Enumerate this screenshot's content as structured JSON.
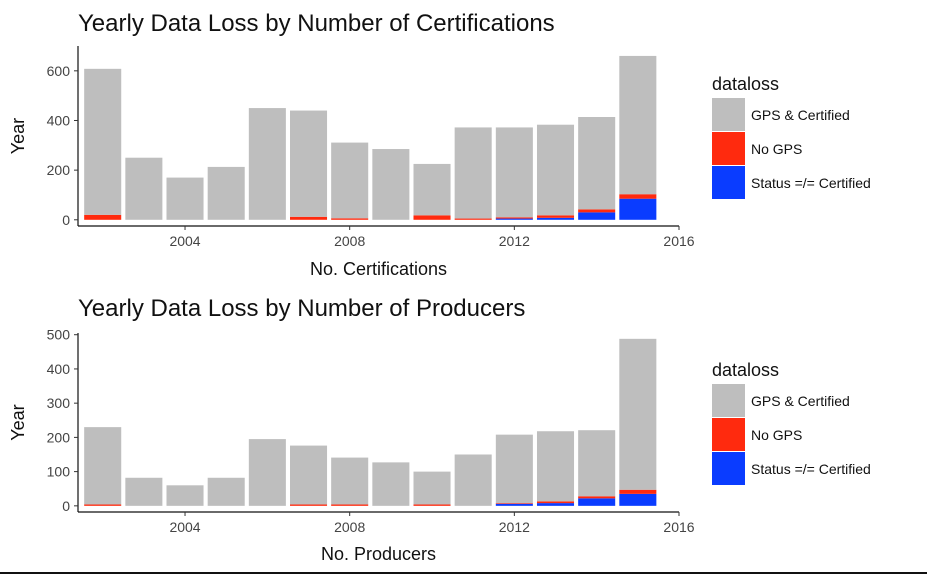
{
  "chart_data": [
    {
      "type": "bar",
      "stacked": true,
      "title": "Yearly Data Loss by Number of Certifications",
      "xlabel": "No. Certifications",
      "ylabel": "Year",
      "x": [
        2002,
        2003,
        2004,
        2005,
        2006,
        2007,
        2008,
        2009,
        2010,
        2011,
        2012,
        2013,
        2014,
        2015
      ],
      "xlim": [
        2001.4,
        2016.0
      ],
      "ylim": [
        -25,
        700
      ],
      "xticks": [
        2004,
        2008,
        2012,
        2016
      ],
      "xtick_labels": [
        "2004",
        "2008",
        "2012",
        "2016"
      ],
      "yticks": [
        0,
        200,
        400,
        600
      ],
      "ytick_labels": [
        "0",
        "200",
        "400",
        "600"
      ],
      "grid": false,
      "legend": {
        "title": "dataloss",
        "position": "right",
        "entries": [
          "GPS & Certified",
          "No GPS",
          "Status =/= Certified"
        ]
      },
      "series": [
        {
          "name": "Status =/= Certified",
          "color": "#0a3cff",
          "values": [
            0,
            0,
            0,
            0,
            0,
            0,
            0,
            0,
            0,
            0,
            5,
            8,
            30,
            85
          ]
        },
        {
          "name": "No GPS",
          "color": "#ff2a0e",
          "values": [
            20,
            0,
            0,
            0,
            0,
            12,
            6,
            0,
            18,
            5,
            5,
            10,
            12,
            18
          ]
        },
        {
          "name": "GPS & Certified",
          "color": "#bebebe",
          "values": [
            588,
            250,
            170,
            213,
            450,
            428,
            305,
            285,
            207,
            367,
            362,
            365,
            372,
            557
          ]
        }
      ]
    },
    {
      "type": "bar",
      "stacked": true,
      "title": "Yearly Data Loss by Number of Producers",
      "xlabel": "No. Producers",
      "ylabel": "Year",
      "x": [
        2002,
        2003,
        2004,
        2005,
        2006,
        2007,
        2008,
        2009,
        2010,
        2011,
        2012,
        2013,
        2014,
        2015
      ],
      "xlim": [
        2001.4,
        2016.0
      ],
      "ylim": [
        -18,
        505
      ],
      "xticks": [
        2004,
        2008,
        2012,
        2016
      ],
      "xtick_labels": [
        "2004",
        "2008",
        "2012",
        "2016"
      ],
      "yticks": [
        0,
        100,
        200,
        300,
        400,
        500
      ],
      "ytick_labels": [
        "0",
        "100",
        "200",
        "300",
        "400",
        "500"
      ],
      "grid": false,
      "legend": {
        "title": "dataloss",
        "position": "right",
        "entries": [
          "GPS & Certified",
          "No GPS",
          "Status =/= Certified"
        ]
      },
      "series": [
        {
          "name": "Status =/= Certified",
          "color": "#0a3cff",
          "values": [
            0,
            0,
            0,
            0,
            0,
            0,
            0,
            0,
            0,
            0,
            6,
            8,
            22,
            35
          ]
        },
        {
          "name": "No GPS",
          "color": "#ff2a0e",
          "values": [
            4,
            0,
            0,
            0,
            0,
            4,
            4,
            0,
            4,
            0,
            2,
            5,
            6,
            12
          ]
        },
        {
          "name": "GPS & Certified",
          "color": "#bebebe",
          "values": [
            226,
            82,
            60,
            82,
            195,
            172,
            137,
            127,
            96,
            150,
            200,
            205,
            193,
            441
          ]
        }
      ]
    }
  ]
}
